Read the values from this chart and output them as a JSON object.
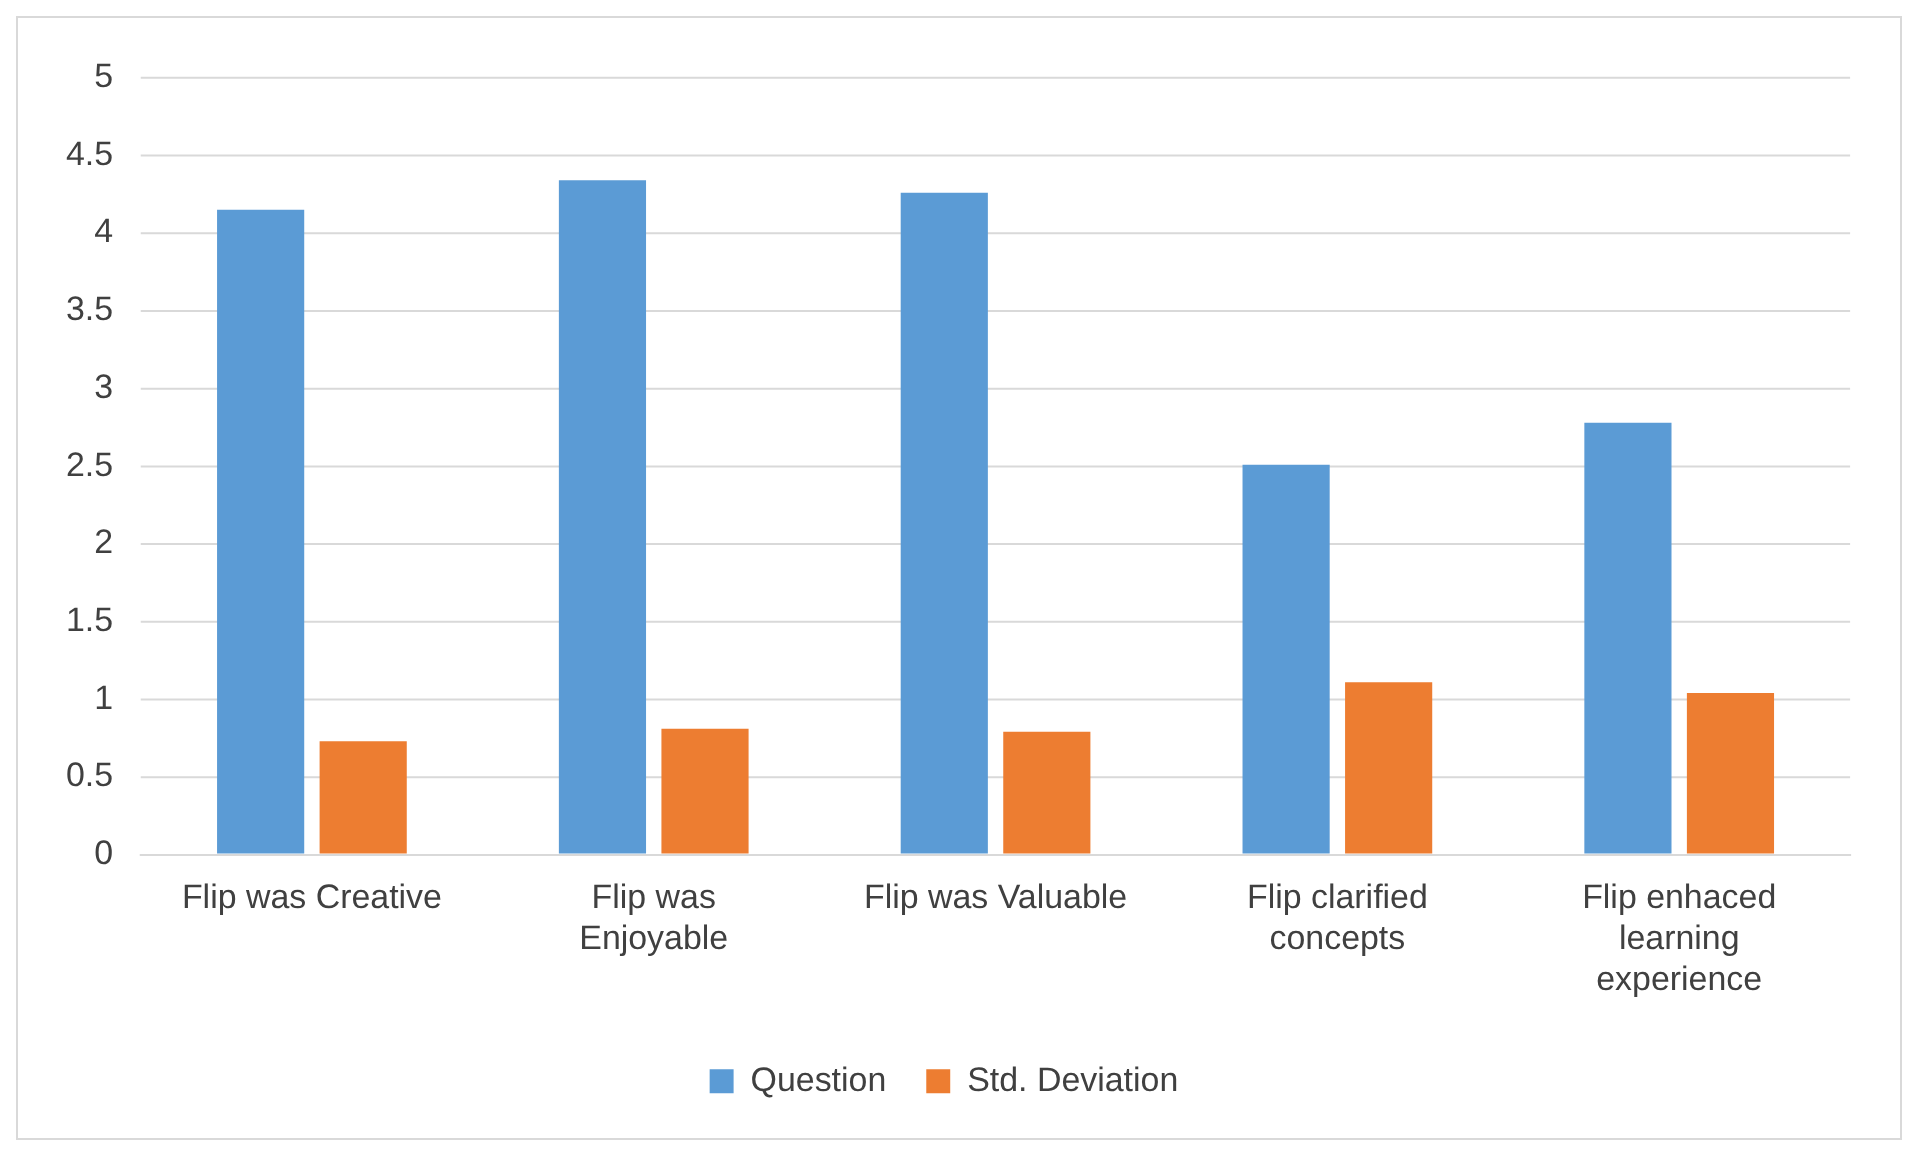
{
  "chart_data": {
    "type": "bar",
    "categories": [
      "Flip was Creative",
      "Flip was Enjoyable",
      "Flip was Valuable",
      "Flip clarified concepts",
      "Flip enhaced learning experience"
    ],
    "series": [
      {
        "name": "Question",
        "color": "#5b9bd5",
        "values": [
          4.15,
          4.34,
          4.26,
          2.51,
          2.78
        ]
      },
      {
        "name": "Std. Deviation",
        "color": "#ed7d31",
        "values": [
          0.73,
          0.81,
          0.79,
          1.11,
          1.04
        ]
      }
    ],
    "ylim": [
      0,
      5
    ],
    "yticks": [
      0,
      0.5,
      1,
      1.5,
      2,
      2.5,
      3,
      3.5,
      4,
      4.5,
      5
    ],
    "grid": "y",
    "legend": "bottom"
  }
}
